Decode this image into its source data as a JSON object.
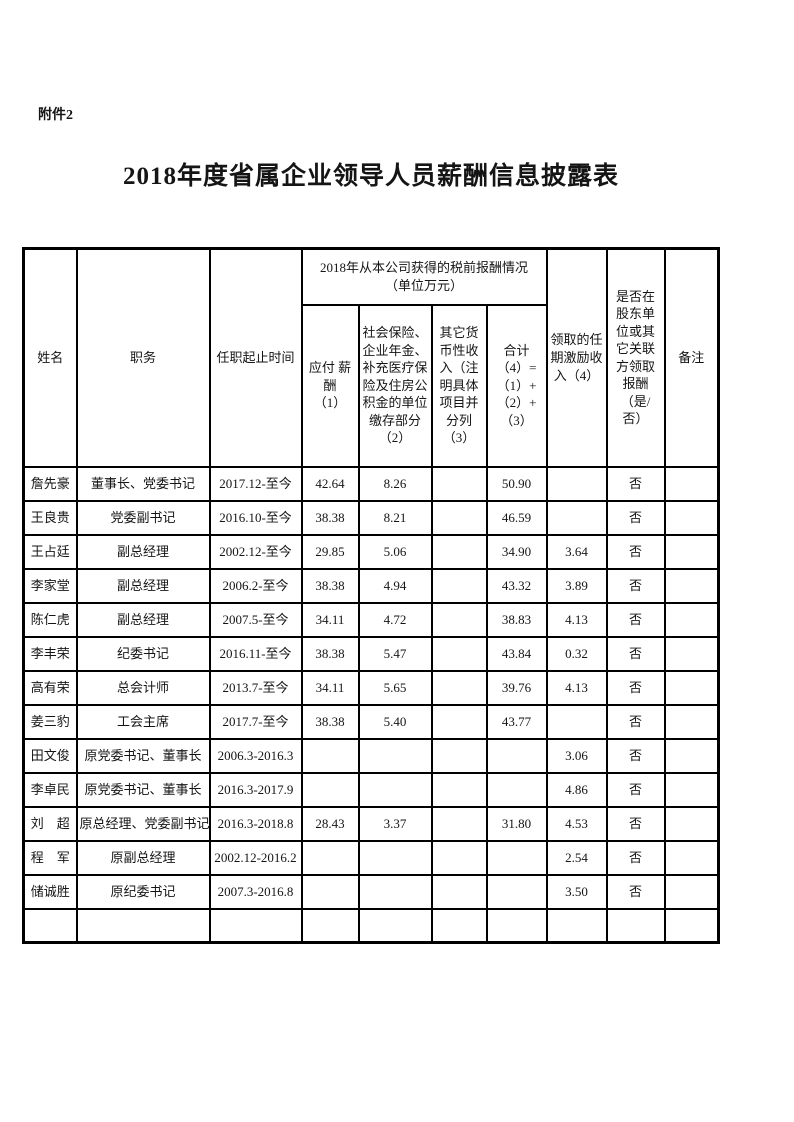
{
  "page": {
    "attachment_label": "附件2",
    "title": "2018年度省属企业领导人员薪酬信息披露表"
  },
  "table": {
    "headers": {
      "name": "姓名",
      "position": "职务",
      "tenure": "任职起止时间",
      "pretax_group": "2018年从本公司获得的税前报酬情况\n（单位万元）",
      "payable_salary": "应付 薪\n酬\n（1）",
      "social_insurance": "社会保险、\n企业年金、\n补充医疗保\n险及住房公\n积金的单位\n缴存部分\n（2）",
      "other_monetary_income": "其它货\n币性收\n入（注\n明具体\n项目并\n分列\n（3）",
      "total": "合计\n（4）=\n（1）+\n（2）+\n（3）",
      "term_incentive": "领取的任\n期激励收\n入（4）",
      "related_party": "是否在\n股东单\n位或其\n它关联\n方领取\n报酬\n（是/\n否）",
      "remarks": "备注"
    },
    "column_keys": [
      "name",
      "position",
      "tenure",
      "payable_salary",
      "social_insurance",
      "other_monetary_income",
      "total",
      "term_incentive",
      "related_party",
      "remarks"
    ],
    "rows": [
      [
        "詹先豪",
        "董事长、党委书记",
        "2017.12-至今",
        "42.64",
        "8.26",
        "",
        "50.90",
        "",
        "否",
        ""
      ],
      [
        "王良贵",
        "党委副书记",
        "2016.10-至今",
        "38.38",
        "8.21",
        "",
        "46.59",
        "",
        "否",
        ""
      ],
      [
        "王占廷",
        "副总经理",
        "2002.12-至今",
        "29.85",
        "5.06",
        "",
        "34.90",
        "3.64",
        "否",
        ""
      ],
      [
        "李家堂",
        "副总经理",
        "2006.2-至今",
        "38.38",
        "4.94",
        "",
        "43.32",
        "3.89",
        "否",
        ""
      ],
      [
        "陈仁虎",
        "副总经理",
        "2007.5-至今",
        "34.11",
        "4.72",
        "",
        "38.83",
        "4.13",
        "否",
        ""
      ],
      [
        "李丰荣",
        "纪委书记",
        "2016.11-至今",
        "38.38",
        "5.47",
        "",
        "43.84",
        "0.32",
        "否",
        ""
      ],
      [
        "高有荣",
        "总会计师",
        "2013.7-至今",
        "34.11",
        "5.65",
        "",
        "39.76",
        "4.13",
        "否",
        ""
      ],
      [
        "姜三豹",
        "工会主席",
        "2017.7-至今",
        "38.38",
        "5.40",
        "",
        "43.77",
        "",
        "否",
        ""
      ],
      [
        "田文俊",
        "原党委书记、董事长",
        "2006.3-2016.3",
        "",
        "",
        "",
        "",
        "3.06",
        "否",
        ""
      ],
      [
        "李卓民",
        "原党委书记、董事长",
        "2016.3-2017.9",
        "",
        "",
        "",
        "",
        "4.86",
        "否",
        ""
      ],
      [
        "刘　超",
        "原总经理、党委副书记",
        "2016.3-2018.8",
        "28.43",
        "3.37",
        "",
        "31.80",
        "4.53",
        "否",
        ""
      ],
      [
        "程　军",
        "原副总经理",
        "2002.12-2016.2",
        "",
        "",
        "",
        "",
        "2.54",
        "否",
        ""
      ],
      [
        "储诚胜",
        "原纪委书记",
        "2007.3-2016.8",
        "",
        "",
        "",
        "",
        "3.50",
        "否",
        ""
      ],
      [
        "",
        "",
        "",
        "",
        "",
        "",
        "",
        "",
        "",
        ""
      ]
    ]
  }
}
